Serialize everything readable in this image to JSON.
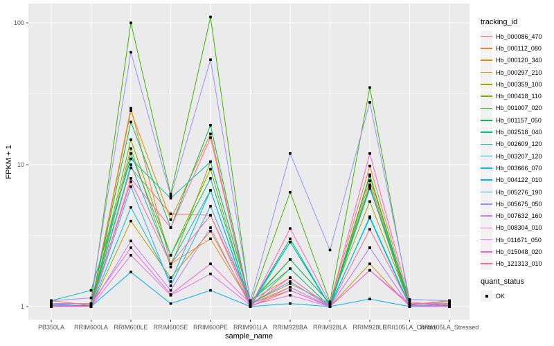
{
  "chart_data": {
    "type": "line",
    "title": "",
    "xlabel": "sample_name",
    "ylabel": "FPKM + 1",
    "y_scale": "log10",
    "ylim": [
      0.93,
      130
    ],
    "grid": true,
    "y_ticks": [
      1,
      10,
      100
    ],
    "y_tick_labels": [
      "1",
      "10",
      "100"
    ],
    "y_minor": [
      3.1623,
      31.623
    ],
    "categories": [
      "PB350LA",
      "RRIM600LA",
      "RRIM600LE",
      "RRIM600SE",
      "RRIM600PE",
      "RRIM901LA",
      "RRIM928BA",
      "RRIM928LA",
      "RRIM928LE",
      "RRII105LA_Control",
      "RRII105LA_Stressed"
    ],
    "legend": {
      "color_title": "tracking_id",
      "shape_title": "quant_status",
      "shape_items": [
        {
          "label": "OK",
          "shape": "square",
          "color": "#000000"
        }
      ],
      "position": "right"
    },
    "colors": {
      "panel_bg": "#EBEBEB",
      "grid": "#FFFFFF",
      "axis_text": "#4D4D4D",
      "title_text": "#000000",
      "legend_key_bg": "#F2F2F2",
      "point": "#000000"
    },
    "series": [
      {
        "name": "Hb_000086_470",
        "color": "#F8766D",
        "values": [
          1.02,
          1.0,
          9.5,
          4.5,
          4.4,
          1.02,
          1.6,
          1.0,
          7.2,
          1.02,
          1.0
        ]
      },
      {
        "name": "Hb_000112_080",
        "color": "#EA8331",
        "values": [
          1.0,
          1.03,
          25.0,
          2.0,
          3.0,
          1.05,
          1.45,
          1.05,
          9.8,
          1.05,
          1.03
        ]
      },
      {
        "name": "Hb_000120_340",
        "color": "#D89000",
        "values": [
          1.05,
          1.0,
          24.0,
          4.1,
          16.5,
          1.0,
          1.3,
          1.0,
          7.7,
          1.0,
          1.05
        ]
      },
      {
        "name": "Hb_000297_210",
        "color": "#C09B00",
        "values": [
          1.0,
          1.0,
          4.0,
          1.6,
          3.4,
          1.04,
          1.37,
          1.0,
          2.0,
          1.0,
          1.0
        ]
      },
      {
        "name": "Hb_000359_100",
        "color": "#A3A500",
        "values": [
          1.1,
          1.02,
          13.0,
          1.9,
          10.5,
          1.08,
          2.15,
          1.06,
          5.5,
          1.04,
          1.08
        ]
      },
      {
        "name": "Hb_000418_110",
        "color": "#7CAE00",
        "values": [
          1.0,
          1.0,
          15.0,
          2.3,
          9.3,
          1.0,
          1.85,
          1.0,
          8.3,
          1.0,
          1.0
        ]
      },
      {
        "name": "Hb_001007_020",
        "color": "#39B600",
        "values": [
          1.05,
          1.05,
          100.0,
          6.2,
          110.0,
          1.05,
          6.4,
          1.08,
          35.0,
          1.05,
          1.05
        ]
      },
      {
        "name": "Hb_001157_050",
        "color": "#00BB4E",
        "values": [
          1.0,
          1.02,
          20.0,
          3.6,
          19.0,
          1.02,
          3.0,
          1.0,
          8.5,
          1.03,
          1.0
        ]
      },
      {
        "name": "Hb_002518_040",
        "color": "#00BF7D",
        "values": [
          1.02,
          1.0,
          12.0,
          2.3,
          8.0,
          1.05,
          2.15,
          1.05,
          7.0,
          1.0,
          1.02
        ]
      },
      {
        "name": "Hb_002609_120",
        "color": "#00C1A3",
        "values": [
          1.1,
          1.3,
          11.0,
          5.8,
          10.5,
          1.1,
          1.85,
          1.0,
          6.8,
          1.12,
          1.1
        ]
      },
      {
        "name": "Hb_003207_120",
        "color": "#00BFC4",
        "values": [
          1.0,
          1.0,
          10.0,
          2.0,
          6.6,
          1.0,
          2.85,
          1.02,
          4.2,
          1.0,
          1.0
        ]
      },
      {
        "name": "Hb_003666_070",
        "color": "#00BAE0",
        "values": [
          1.03,
          1.0,
          5.0,
          1.5,
          6.6,
          1.03,
          2.85,
          1.0,
          4.3,
          1.02,
          1.0
        ]
      },
      {
        "name": "Hb_004122_010",
        "color": "#00B0F6",
        "values": [
          1.0,
          1.0,
          1.75,
          1.05,
          1.3,
          1.0,
          1.05,
          1.0,
          1.13,
          1.0,
          1.02
        ]
      },
      {
        "name": "Hb_005276_190",
        "color": "#35A2FF",
        "values": [
          1.05,
          1.0,
          7.0,
          1.4,
          5.1,
          1.05,
          1.5,
          1.0,
          2.6,
          1.0,
          1.05
        ]
      },
      {
        "name": "Hb_005675_050",
        "color": "#9590FF",
        "values": [
          1.1,
          1.15,
          62.0,
          6.0,
          55.0,
          1.1,
          12.0,
          2.5,
          27.5,
          1.12,
          1.1
        ]
      },
      {
        "name": "Hb_007632_160",
        "color": "#C77CFF",
        "values": [
          1.0,
          1.0,
          2.9,
          1.3,
          3.6,
          1.0,
          1.37,
          1.0,
          2.6,
          1.0,
          1.0
        ]
      },
      {
        "name": "Hb_008304_010",
        "color": "#E76BF3",
        "values": [
          1.02,
          1.0,
          2.3,
          1.2,
          1.7,
          1.02,
          1.2,
          1.0,
          1.8,
          1.02,
          1.0
        ]
      },
      {
        "name": "Hb_011671_050",
        "color": "#FA62DB",
        "values": [
          1.05,
          1.05,
          2.6,
          1.22,
          2.0,
          1.05,
          1.3,
          1.0,
          1.8,
          1.05,
          1.05
        ]
      },
      {
        "name": "Hb_015048_020",
        "color": "#FF62BC",
        "values": [
          1.0,
          1.0,
          8.0,
          3.6,
          15.5,
          1.0,
          3.55,
          1.05,
          12.0,
          1.08,
          1.0
        ]
      },
      {
        "name": "Hb_121313_010",
        "color": "#FF6A98",
        "values": [
          1.1,
          1.02,
          7.6,
          2.0,
          4.4,
          1.1,
          1.6,
          1.0,
          3.5,
          1.03,
          1.1
        ]
      }
    ]
  }
}
